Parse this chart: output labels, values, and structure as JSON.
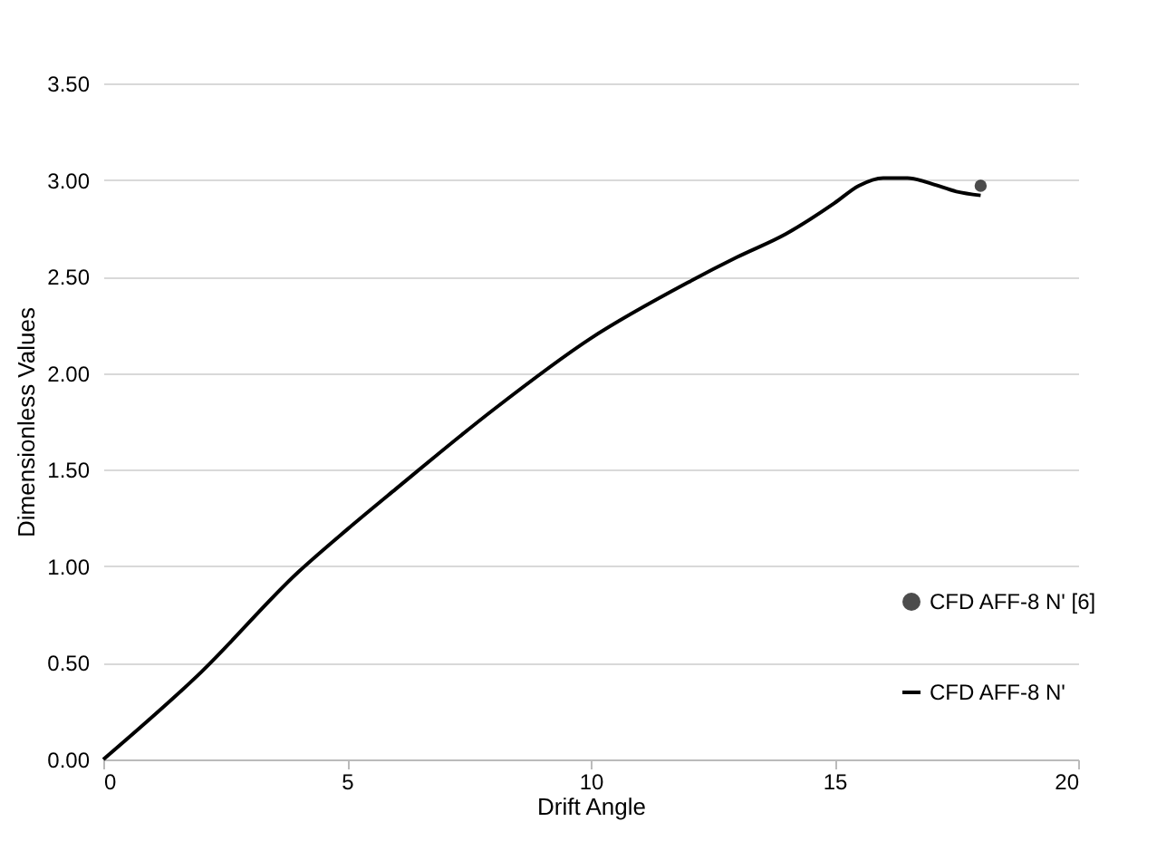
{
  "chart_data": {
    "type": "line",
    "xlabel": "Drift Angle",
    "ylabel": "Dimensionless Values",
    "xlim": [
      0,
      20
    ],
    "xticks": [
      0,
      5,
      10,
      15,
      20
    ],
    "ylim": [
      0,
      3.5
    ],
    "yticks": [
      {
        "value": 0,
        "label": "0.00"
      },
      {
        "value": 0.5,
        "label": "0.50"
      },
      {
        "value": 1,
        "label": "1.00"
      },
      {
        "value": 1.5,
        "label": "1.50"
      },
      {
        "value": 2,
        "label": "2.00"
      },
      {
        "value": 2.5,
        "label": "2.50"
      },
      {
        "value": 3,
        "label": "3.00"
      },
      {
        "value": 3.5,
        "label": "3.50"
      }
    ],
    "grid": "y",
    "legend": "right",
    "series": [
      {
        "name": "CFD AFF-8 N' [6]",
        "type": "scatter",
        "marker": "circle",
        "color": "#000000",
        "x": [
          18
        ],
        "values": [
          2.97
        ]
      },
      {
        "name": "CFD AFF-8 N'",
        "type": "line",
        "color": "#000000",
        "x": [
          0,
          2,
          4,
          5,
          6,
          8,
          10,
          12,
          13,
          14,
          15,
          15.5,
          16,
          16.5,
          17,
          17.5,
          18
        ],
        "values": [
          0,
          0.45,
          0.97,
          1.19,
          1.4,
          1.81,
          2.18,
          2.47,
          2.6,
          2.72,
          2.88,
          2.97,
          3.01,
          3.01,
          2.98,
          2.94,
          2.92
        ]
      }
    ]
  }
}
